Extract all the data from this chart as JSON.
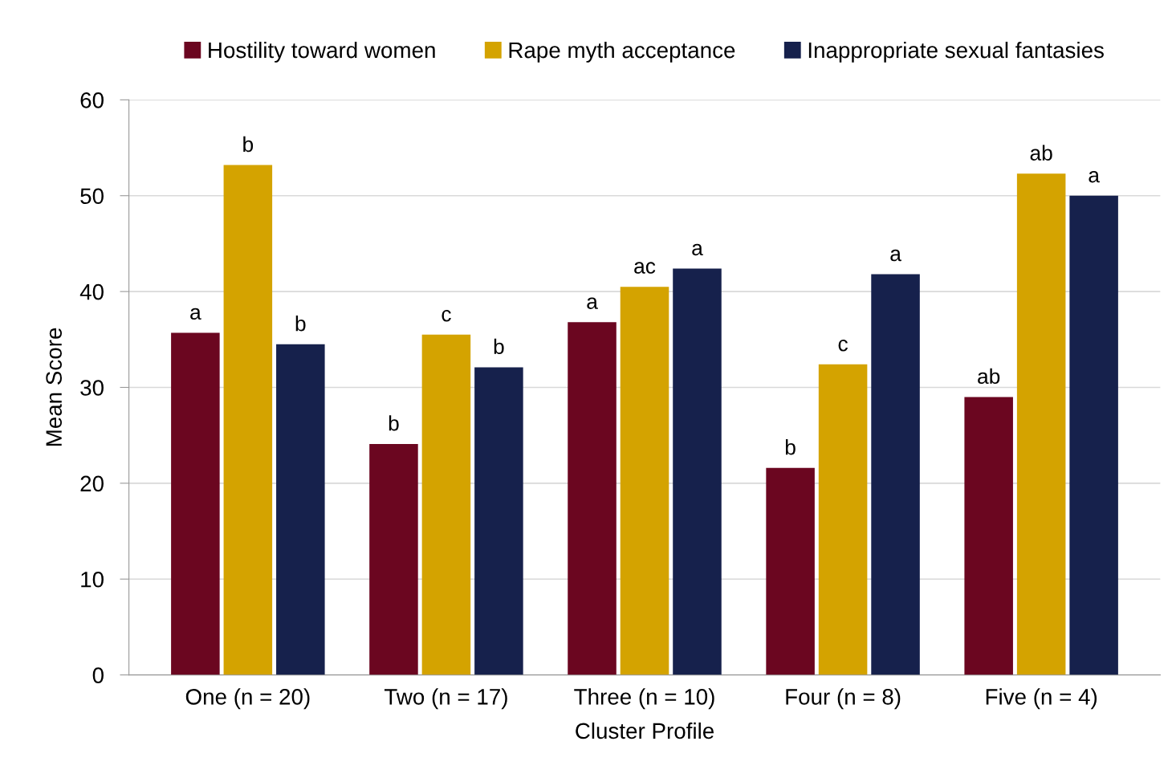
{
  "chart_data": {
    "type": "bar",
    "xlabel": "Cluster Profile",
    "ylabel": "Mean Score",
    "categories": [
      "One (n = 20)",
      "Two (n = 17)",
      "Three (n = 10)",
      "Four (n = 8)",
      "Five (n = 4)"
    ],
    "series": [
      {
        "name": "Hostility toward women",
        "color": "#6b0620",
        "values": [
          35.7,
          24.1,
          36.8,
          21.6,
          29.0
        ],
        "value_labels": [
          "a",
          "b",
          "a",
          "b",
          "ab"
        ]
      },
      {
        "name": "Rape myth acceptance",
        "color": "#d4a300",
        "values": [
          53.2,
          35.5,
          40.5,
          32.4,
          52.3
        ],
        "value_labels": [
          "b",
          "c",
          "ac",
          "c",
          "ab"
        ]
      },
      {
        "name": "Inappropriate sexual fantasies",
        "color": "#16214c",
        "values": [
          34.5,
          32.1,
          42.4,
          41.8,
          50.0
        ],
        "value_labels": [
          "b",
          "b",
          "a",
          "a",
          "a"
        ]
      }
    ],
    "ylim": [
      0,
      60
    ],
    "yticks": [
      0,
      10,
      20,
      30,
      40,
      50,
      60
    ],
    "grid": "y",
    "legend": "top"
  }
}
